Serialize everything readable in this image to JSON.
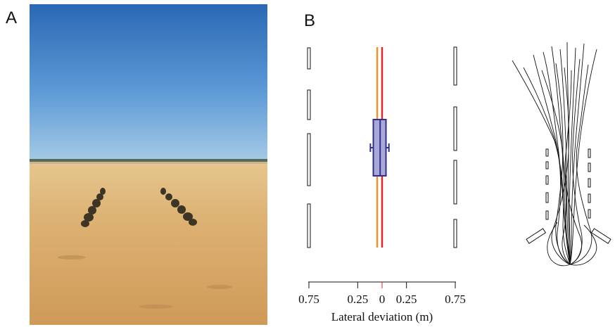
{
  "panels": {
    "a_label": "A",
    "b_label": "B"
  },
  "chart_data": {
    "type": "box",
    "xlabel": "Lateral deviation (m)",
    "tick_labels": [
      "0.75",
      "0.25",
      "0",
      "0.25",
      "0.75"
    ],
    "tick_values": [
      -0.75,
      -0.25,
      0,
      0.25,
      0.75
    ],
    "xlim": [
      -0.75,
      0.75
    ],
    "reference_lines": [
      {
        "value": 0,
        "color": "#e1252b"
      },
      {
        "value": -0.05,
        "color": "#f0932a"
      }
    ],
    "box": {
      "q1": -0.09,
      "median": -0.02,
      "q3": 0.04,
      "whisker_low": -0.12,
      "whisker_high": 0.07,
      "fill": "#aaa9d6",
      "stroke": "#2e3190"
    }
  }
}
